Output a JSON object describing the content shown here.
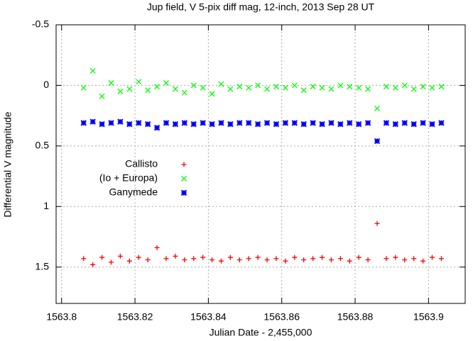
{
  "chart_data": {
    "type": "scatter",
    "title": "Jup field, V 5-pix diff mag, 12-inch, 2013 Sep 28 UT",
    "xlabel": "Julian Date - 2,455,000",
    "ylabel": "Differential V magnitude",
    "xlim": [
      1563.7985,
      1563.91
    ],
    "ylim": [
      1.8,
      -0.5
    ],
    "xticks": [
      1563.8,
      1563.82,
      1563.84,
      1563.86,
      1563.88,
      1563.9
    ],
    "yticks": [
      {
        "value": -0.5,
        "label": "-0.5"
      },
      0,
      0.5,
      1,
      1.5
    ],
    "grid": true,
    "legend": "upper left",
    "x": [
      1563.806,
      1563.8085,
      1563.811,
      1563.8135,
      1563.816,
      1563.8185,
      1563.821,
      1563.8235,
      1563.826,
      1563.8285,
      1563.831,
      1563.8335,
      1563.836,
      1563.8385,
      1563.841,
      1563.8435,
      1563.846,
      1563.8485,
      1563.851,
      1563.8535,
      1563.856,
      1563.8585,
      1563.861,
      1563.8635,
      1563.866,
      1563.8685,
      1563.871,
      1563.8735,
      1563.876,
      1563.8785,
      1563.881,
      1563.8835,
      1563.886,
      1563.8885,
      1563.891,
      1563.8935,
      1563.896,
      1563.8985,
      1563.901,
      1563.9035
    ],
    "series": [
      {
        "name": "Callisto",
        "color": "#ff0000",
        "marker": "plus",
        "values": [
          1.43,
          1.48,
          1.42,
          1.46,
          1.41,
          1.45,
          1.42,
          1.44,
          1.34,
          1.43,
          1.41,
          1.44,
          1.43,
          1.42,
          1.44,
          1.45,
          1.42,
          1.44,
          1.43,
          1.42,
          1.44,
          1.43,
          1.45,
          1.42,
          1.44,
          1.43,
          1.42,
          1.44,
          1.43,
          1.45,
          1.42,
          1.44,
          1.14,
          1.43,
          1.42,
          1.44,
          1.43,
          1.45,
          1.42,
          1.43
        ]
      },
      {
        "name": "(Io + Europa)",
        "color": "#00ff00",
        "marker": "cross",
        "values": [
          0.02,
          -0.12,
          0.09,
          -0.02,
          0.05,
          0.03,
          -0.03,
          0.04,
          0.01,
          -0.02,
          0.03,
          0.06,
          0.0,
          0.02,
          0.07,
          -0.01,
          0.03,
          0.01,
          0.02,
          0.0,
          0.03,
          0.01,
          0.02,
          0.0,
          0.04,
          0.01,
          0.02,
          0.03,
          0.0,
          0.01,
          0.02,
          0.03,
          0.19,
          0.01,
          0.02,
          0.0,
          0.03,
          0.01,
          0.02,
          0.01
        ]
      },
      {
        "name": "Ganymede",
        "color": "#0000ff",
        "marker": "star",
        "values": [
          0.31,
          0.3,
          0.32,
          0.31,
          0.3,
          0.32,
          0.31,
          0.32,
          0.35,
          0.31,
          0.32,
          0.31,
          0.32,
          0.31,
          0.32,
          0.31,
          0.32,
          0.31,
          0.31,
          0.32,
          0.31,
          0.32,
          0.31,
          0.31,
          0.32,
          0.31,
          0.32,
          0.31,
          0.32,
          0.31,
          0.32,
          0.31,
          0.46,
          0.31,
          0.32,
          0.31,
          0.32,
          0.31,
          0.32,
          0.31
        ]
      }
    ]
  }
}
